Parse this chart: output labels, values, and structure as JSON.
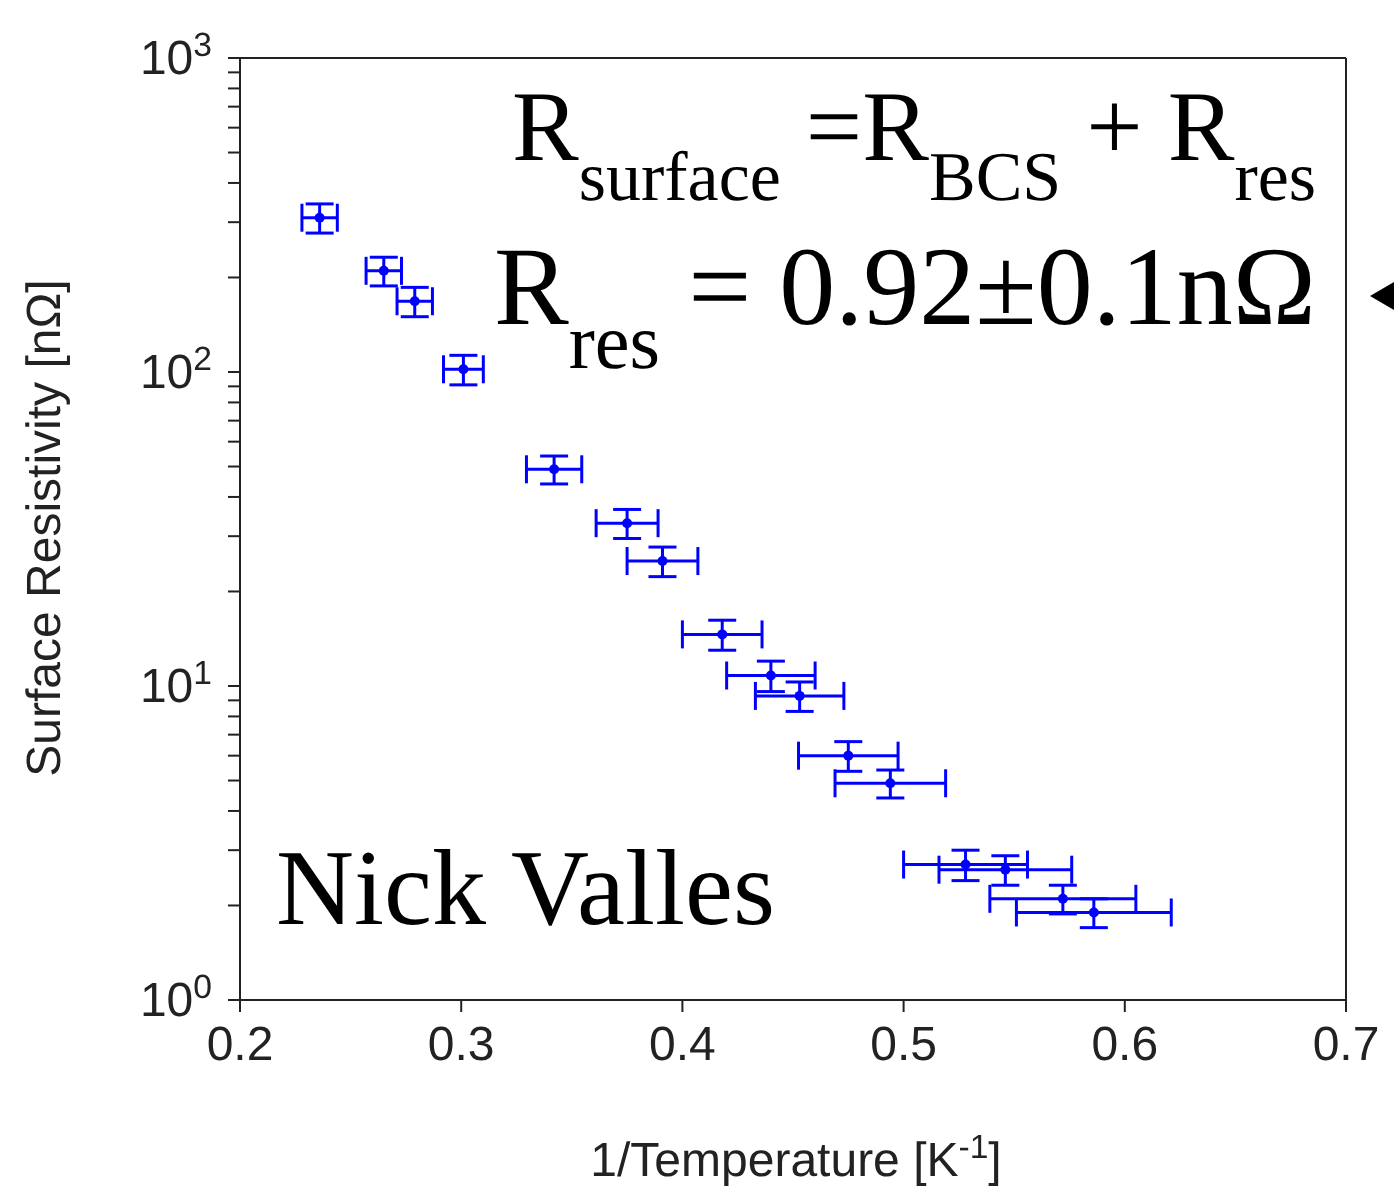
{
  "chart_data": {
    "type": "scatter",
    "xlabel": "1/Temperature [K$^{-1}$]",
    "ylabel": "Surface Resistivity [nΩ]",
    "annotations": [
      "R$_{surface}$ =R$_{BCS}$ + R$_{res}$",
      "R$_{res}$ = 0.92±0.1nΩ",
      "Nick Valles"
    ],
    "series": [
      {
        "color": "#0000ff",
        "x": [
          0.236,
          0.265,
          0.279,
          0.301,
          0.342,
          0.375,
          0.391,
          0.418,
          0.44,
          0.453,
          0.475,
          0.494,
          0.528,
          0.546,
          0.572,
          0.586
        ],
        "values": [
          310,
          210,
          168,
          102,
          49,
          33,
          25,
          14.6,
          10.8,
          9.3,
          6.0,
          4.9,
          2.7,
          2.6,
          2.1,
          1.9
        ],
        "errors": [
          33,
          22,
          18,
          11,
          5,
          3.5,
          2.7,
          1.6,
          1.2,
          1.0,
          0.65,
          0.5,
          0.3,
          0.28,
          0.22,
          0.2
        ],
        "xerrors": [
          0.008,
          0.008,
          0.008,
          0.009,
          0.0125,
          0.014,
          0.016,
          0.018,
          0.02,
          0.02,
          0.0225,
          0.025,
          0.028,
          0.03,
          0.033,
          0.035
        ]
      }
    ],
    "marker": "circle",
    "log": "y",
    "grid": false,
    "legend": false,
    "xlim": [
      0.2,
      0.7
    ],
    "xticks": [
      0.2,
      0.3,
      0.4,
      0.5,
      0.6,
      0.7
    ],
    "ylim": [
      1,
      1000
    ],
    "yticks": [
      {
        "value": 1,
        "label": "10$^{0}$"
      },
      {
        "value": 2,
        "label": null
      },
      {
        "value": 3,
        "label": null
      },
      {
        "value": 4,
        "label": null
      },
      {
        "value": 5,
        "label": null
      },
      {
        "value": 6,
        "label": null
      },
      {
        "value": 7,
        "label": null
      },
      {
        "value": 8,
        "label": null
      },
      {
        "value": 9,
        "label": null
      },
      {
        "value": 10,
        "label": "10$^{1}$"
      },
      {
        "value": 20,
        "label": null
      },
      {
        "value": 30,
        "label": null
      },
      {
        "value": 40,
        "label": null
      },
      {
        "value": 50,
        "label": null
      },
      {
        "value": 60,
        "label": null
      },
      {
        "value": 70,
        "label": null
      },
      {
        "value": 80,
        "label": null
      },
      {
        "value": 90,
        "label": null
      },
      {
        "value": 100,
        "label": "10$^{2}$"
      },
      {
        "value": 200,
        "label": null
      },
      {
        "value": 300,
        "label": null
      },
      {
        "value": 400,
        "label": null
      },
      {
        "value": 500,
        "label": null
      },
      {
        "value": 600,
        "label": null
      },
      {
        "value": 700,
        "label": null
      },
      {
        "value": 800,
        "label": null
      },
      {
        "value": 900,
        "label": null
      },
      {
        "value": 1000,
        "label": "10$^{3}$"
      }
    ]
  }
}
